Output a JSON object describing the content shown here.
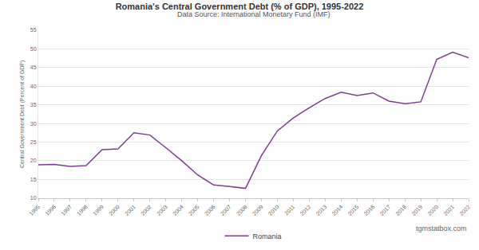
{
  "chart_data": {
    "type": "line",
    "title": "Romania's Central Government Debt (% of GDP), 1995-2022",
    "subtitle": "Data Source: International Monetary Fund (IMF)",
    "y_label": "Central Government Debt (Percent of GDP)",
    "annotations": [
      "STATBOX",
      "tgmstatbox.com"
    ],
    "x": [
      1995,
      1996,
      1997,
      1998,
      1999,
      2000,
      2001,
      2002,
      2003,
      2004,
      2005,
      2006,
      2007,
      2008,
      2009,
      2010,
      2011,
      2012,
      2013,
      2014,
      2015,
      2016,
      2017,
      2018,
      2019,
      2020,
      2021,
      2022
    ],
    "series": [
      {
        "name": "Romania",
        "color": "#7b3f8c",
        "values": [
          18.9,
          19.0,
          18.5,
          18.7,
          23.0,
          23.2,
          27.5,
          26.9,
          23.5,
          20.0,
          16.2,
          13.5,
          13.1,
          12.6,
          21.4,
          28.0,
          31.5,
          34.2,
          36.7,
          38.4,
          37.5,
          38.2,
          36.0,
          35.3,
          35.8,
          47.2,
          49.1,
          47.6
        ]
      }
    ],
    "xlim": [
      1995,
      2022
    ],
    "xticks": [
      1995,
      1996,
      1997,
      1998,
      1999,
      2000,
      2001,
      2002,
      2003,
      2004,
      2005,
      2006,
      2007,
      2008,
      2009,
      2010,
      2011,
      2012,
      2013,
      2014,
      2015,
      2016,
      2017,
      2018,
      2019,
      2020,
      2021,
      2022
    ],
    "ylim": [
      10,
      55
    ],
    "yticks": [
      10,
      15,
      20,
      25,
      30,
      35,
      40,
      45,
      50,
      55
    ],
    "grid": true,
    "legend": "bottom",
    "marker": "none"
  }
}
